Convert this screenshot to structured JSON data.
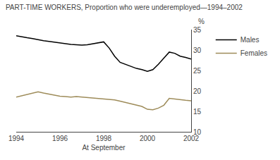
{
  "chart_data": {
    "type": "line",
    "title": "PART-TIME WORKERS, Proportion who were underemployed—1994–2002",
    "xlabel": "At September",
    "ylabel": "%",
    "x": [
      1994,
      1994.25,
      1994.5,
      1994.75,
      1995,
      1995.25,
      1995.5,
      1995.75,
      1996,
      1996.25,
      1996.5,
      1996.75,
      1997,
      1997.25,
      1997.5,
      1997.75,
      1998,
      1998.25,
      1998.5,
      1998.75,
      1999,
      1999.25,
      1999.5,
      1999.75,
      2000,
      2000.25,
      2000.5,
      2000.75,
      2001,
      2001.25,
      2001.5,
      2001.75,
      2002
    ],
    "series": [
      {
        "name": "Males",
        "color": "#000000",
        "values": [
          33.5,
          33.2,
          33.0,
          32.8,
          32.5,
          32.3,
          32.1,
          31.9,
          31.7,
          31.5,
          31.4,
          31.3,
          31.2,
          31.3,
          31.5,
          31.7,
          32.0,
          30.5,
          28.5,
          27.0,
          26.5,
          26.0,
          25.5,
          25.2,
          24.8,
          25.2,
          26.5,
          28.0,
          29.5,
          29.2,
          28.5,
          28.2,
          27.8
        ]
      },
      {
        "name": "Females",
        "color": "#9e8c5a",
        "values": [
          18.5,
          18.8,
          19.2,
          19.5,
          19.8,
          19.5,
          19.2,
          18.9,
          18.7,
          18.6,
          18.5,
          18.6,
          18.5,
          18.4,
          18.3,
          18.2,
          18.1,
          18.0,
          17.8,
          17.5,
          17.2,
          16.8,
          16.5,
          16.2,
          15.5,
          15.4,
          15.8,
          16.5,
          18.2,
          18.0,
          17.8,
          17.7,
          17.6
        ]
      }
    ],
    "xlim": [
      1994,
      2002
    ],
    "xticks": [
      1994,
      1996,
      1998,
      2000,
      2002
    ],
    "ylim": [
      10,
      35
    ],
    "yticks": [
      10,
      15,
      20,
      25,
      30,
      35
    ],
    "grid": false,
    "legend": "upper right"
  }
}
